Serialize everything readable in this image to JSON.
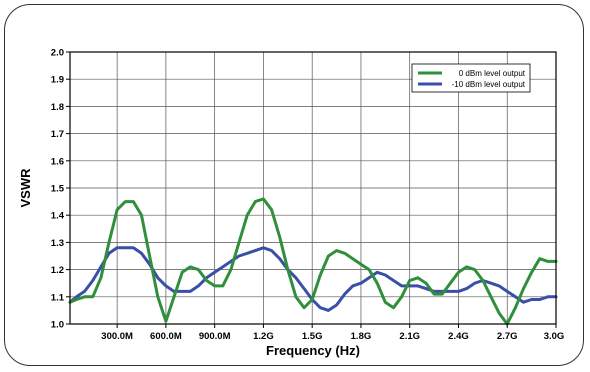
{
  "chart_data": {
    "type": "line",
    "xlabel": "Frequency (Hz)",
    "ylabel": "VSWR",
    "xlim": [
      10000000,
      3000000000
    ],
    "ylim": [
      1.0,
      2.0
    ],
    "x_ticks": [
      300000000,
      600000000,
      900000000,
      1200000000,
      1500000000,
      1800000000,
      2100000000,
      2400000000,
      2700000000,
      3000000000
    ],
    "x_tick_labels": [
      "300.0M",
      "600.0M",
      "900.0M",
      "1.2G",
      "1.5G",
      "1.8G",
      "2.1G",
      "2.4G",
      "2.7G",
      "3.0G"
    ],
    "y_ticks": [
      1.0,
      1.1,
      1.2,
      1.3,
      1.4,
      1.5,
      1.6,
      1.7,
      1.8,
      1.9,
      2.0
    ],
    "y_tick_labels": [
      "1.0",
      "1.1",
      "1.2",
      "1.3",
      "1.4",
      "1.5",
      "1.6",
      "1.7",
      "1.8",
      "1.9",
      "2.0"
    ],
    "grid": true,
    "legend_position": "top-right",
    "series": [
      {
        "name": "0 dBm level output",
        "color": "#2f8f3a",
        "x": [
          10000000,
          50000000,
          100000000,
          150000000,
          200000000,
          250000000,
          300000000,
          350000000,
          400000000,
          450000000,
          500000000,
          550000000,
          600000000,
          650000000,
          700000000,
          750000000,
          800000000,
          850000000,
          900000000,
          950000000,
          1000000000,
          1050000000,
          1100000000,
          1150000000,
          1200000000,
          1250000000,
          1300000000,
          1350000000,
          1400000000,
          1450000000,
          1500000000,
          1550000000,
          1600000000,
          1650000000,
          1700000000,
          1750000000,
          1800000000,
          1850000000,
          1900000000,
          1950000000,
          2000000000,
          2050000000,
          2100000000,
          2150000000,
          2200000000,
          2250000000,
          2300000000,
          2350000000,
          2400000000,
          2450000000,
          2500000000,
          2550000000,
          2600000000,
          2650000000,
          2700000000,
          2750000000,
          2800000000,
          2850000000,
          2900000000,
          2950000000,
          3000000000
        ],
        "y": [
          1.08,
          1.09,
          1.1,
          1.1,
          1.17,
          1.3,
          1.42,
          1.45,
          1.45,
          1.4,
          1.25,
          1.1,
          1.01,
          1.1,
          1.19,
          1.21,
          1.2,
          1.16,
          1.14,
          1.14,
          1.2,
          1.3,
          1.4,
          1.45,
          1.46,
          1.42,
          1.32,
          1.2,
          1.1,
          1.06,
          1.09,
          1.18,
          1.25,
          1.27,
          1.26,
          1.24,
          1.22,
          1.2,
          1.15,
          1.08,
          1.06,
          1.1,
          1.16,
          1.17,
          1.15,
          1.11,
          1.11,
          1.15,
          1.19,
          1.21,
          1.2,
          1.16,
          1.1,
          1.04,
          1.0,
          1.06,
          1.13,
          1.19,
          1.24,
          1.23,
          1.23
        ]
      },
      {
        "name": "-10 dBm level output",
        "color": "#3a4fa8",
        "x": [
          10000000,
          50000000,
          100000000,
          150000000,
          200000000,
          250000000,
          300000000,
          350000000,
          400000000,
          450000000,
          500000000,
          550000000,
          600000000,
          650000000,
          700000000,
          750000000,
          800000000,
          850000000,
          900000000,
          950000000,
          1000000000,
          1050000000,
          1100000000,
          1150000000,
          1200000000,
          1250000000,
          1300000000,
          1350000000,
          1400000000,
          1450000000,
          1500000000,
          1550000000,
          1600000000,
          1650000000,
          1700000000,
          1750000000,
          1800000000,
          1850000000,
          1900000000,
          1950000000,
          2000000000,
          2050000000,
          2100000000,
          2150000000,
          2200000000,
          2250000000,
          2300000000,
          2350000000,
          2400000000,
          2450000000,
          2500000000,
          2550000000,
          2600000000,
          2650000000,
          2700000000,
          2750000000,
          2800000000,
          2850000000,
          2900000000,
          2950000000,
          3000000000
        ],
        "y": [
          1.08,
          1.1,
          1.12,
          1.16,
          1.21,
          1.26,
          1.28,
          1.28,
          1.28,
          1.26,
          1.22,
          1.17,
          1.14,
          1.12,
          1.12,
          1.12,
          1.14,
          1.17,
          1.19,
          1.21,
          1.23,
          1.25,
          1.26,
          1.27,
          1.28,
          1.27,
          1.24,
          1.2,
          1.17,
          1.13,
          1.09,
          1.06,
          1.05,
          1.07,
          1.11,
          1.14,
          1.15,
          1.17,
          1.19,
          1.18,
          1.16,
          1.14,
          1.14,
          1.14,
          1.13,
          1.12,
          1.12,
          1.12,
          1.12,
          1.13,
          1.15,
          1.16,
          1.15,
          1.14,
          1.12,
          1.1,
          1.08,
          1.09,
          1.09,
          1.1,
          1.1
        ]
      }
    ]
  }
}
